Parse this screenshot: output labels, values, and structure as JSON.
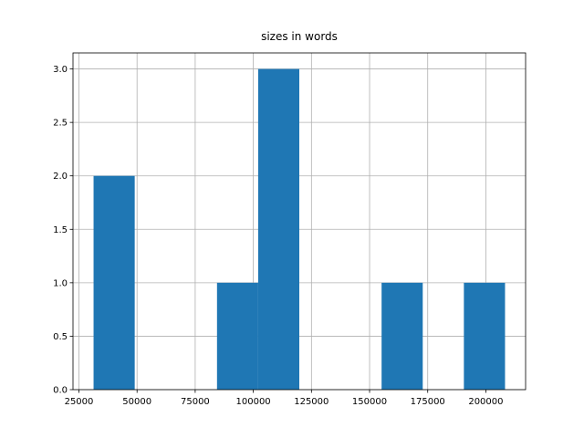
{
  "chart_data": {
    "type": "histogram",
    "title": "sizes in words",
    "bins": [
      31300,
      48995,
      66690,
      84385,
      102080,
      119775,
      137470,
      155165,
      172860,
      190555,
      208250
    ],
    "values": [
      2,
      0,
      0,
      1,
      3,
      0,
      0,
      1,
      0,
      1
    ],
    "color": "#1f77b4",
    "xlim": [
      22453,
      217097
    ],
    "xticks": [
      25000,
      50000,
      75000,
      100000,
      125000,
      150000,
      175000,
      200000
    ],
    "ylim": [
      0,
      3.15
    ],
    "yticks": [
      {
        "value": 0,
        "label": "0.0"
      },
      {
        "value": 0.5,
        "label": "0.5"
      },
      {
        "value": 1,
        "label": "1.0"
      },
      {
        "value": 1.5,
        "label": "1.5"
      },
      {
        "value": 2,
        "label": "2.0"
      },
      {
        "value": 2.5,
        "label": "2.5"
      },
      {
        "value": 3,
        "label": "3.0"
      }
    ],
    "grid": true
  }
}
